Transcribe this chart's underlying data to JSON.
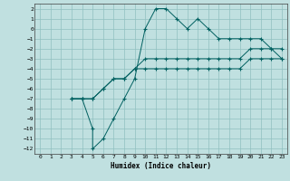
{
  "xlabel": "Humidex (Indice chaleur)",
  "background_color": "#c0e0e0",
  "grid_color": "#90c0c0",
  "line_color": "#006060",
  "xlim": [
    -0.5,
    23.5
  ],
  "ylim": [
    -12.5,
    2.5
  ],
  "xticks": [
    0,
    1,
    2,
    3,
    4,
    5,
    6,
    7,
    8,
    9,
    10,
    11,
    12,
    13,
    14,
    15,
    16,
    17,
    18,
    19,
    20,
    21,
    22,
    23
  ],
  "yticks": [
    2,
    1,
    0,
    -1,
    -2,
    -3,
    -4,
    -5,
    -6,
    -7,
    -8,
    -9,
    -10,
    -11,
    -12
  ],
  "curve1_x": [
    3,
    4,
    5,
    5,
    6,
    7,
    8,
    9,
    10,
    11,
    12,
    13,
    14,
    15,
    16,
    17,
    18,
    19,
    20,
    21,
    22,
    23
  ],
  "curve1_y": [
    -7,
    -7,
    -10,
    -12,
    -11,
    -9,
    -7,
    -5,
    0,
    2,
    2,
    1,
    0,
    1,
    0,
    -1,
    -1,
    -1,
    -1,
    -1,
    -2,
    -3
  ],
  "curve2_x": [
    3,
    4,
    5,
    6,
    7,
    8,
    9,
    10,
    11,
    12,
    13,
    14,
    15,
    16,
    17,
    18,
    19,
    20,
    21,
    22,
    23
  ],
  "curve2_y": [
    -7,
    -7,
    -7,
    -6,
    -5,
    -5,
    -4,
    -4,
    -4,
    -4,
    -4,
    -4,
    -4,
    -4,
    -4,
    -4,
    -4,
    -3,
    -3,
    -3,
    -3
  ],
  "curve3_x": [
    3,
    4,
    5,
    6,
    7,
    8,
    9,
    10,
    11,
    12,
    13,
    14,
    15,
    16,
    17,
    18,
    19,
    20,
    21,
    22,
    23
  ],
  "curve3_y": [
    -7,
    -7,
    -7,
    -6,
    -5,
    -5,
    -4,
    -3,
    -3,
    -3,
    -3,
    -3,
    -3,
    -3,
    -3,
    -3,
    -3,
    -2,
    -2,
    -2,
    -2
  ]
}
